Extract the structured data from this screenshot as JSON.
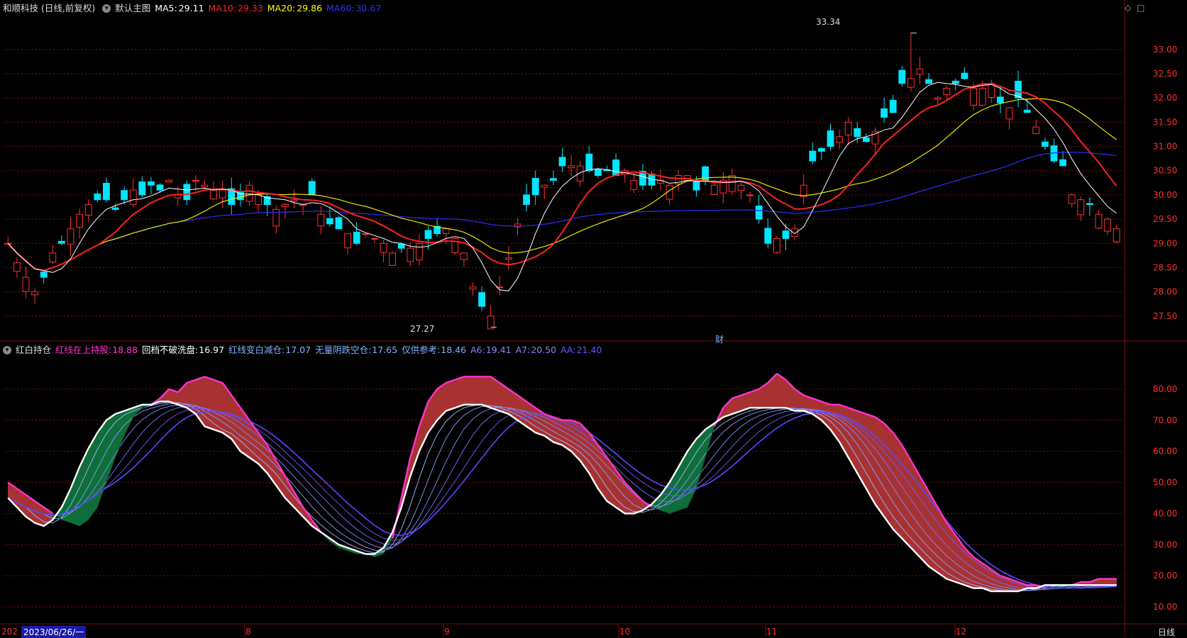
{
  "main_header": {
    "stock": "和顺科技 (日线,前复权)",
    "template": "默认主图",
    "ma": [
      {
        "label": "MA5:",
        "value": "29.11",
        "color": "#ffffff"
      },
      {
        "label": "MA10:",
        "value": "29.33",
        "color": "#ff2020"
      },
      {
        "label": "MA20:",
        "value": "29.86",
        "color": "#ffff00"
      },
      {
        "label": "MA60:",
        "value": "30.67",
        "color": "#2020ff"
      }
    ]
  },
  "sub_header": {
    "name": "红白持仓",
    "items": [
      {
        "label": "红线在上持股:",
        "value": "18.88",
        "color": "#ff33cc"
      },
      {
        "label": "回档不破洗盘:",
        "value": "16.97",
        "color": "#ffffff"
      },
      {
        "label": "红线变白减仓:",
        "value": "17.07",
        "color": "#7fb2ff"
      },
      {
        "label": "无量阴跌空仓:",
        "value": "17.65",
        "color": "#7fb2ff"
      },
      {
        "label": "仅供参考:",
        "value": "18.46",
        "color": "#7fb2ff"
      },
      {
        "label": "A6:",
        "value": "19.41",
        "color": "#8f7fff"
      },
      {
        "label": "A7:",
        "value": "20.50",
        "color": "#8f7fff"
      },
      {
        "label": "AA:",
        "value": "21.40",
        "color": "#5a5aff"
      }
    ]
  },
  "icons": [
    "diamond-icon",
    "square-icon",
    "collapse-icon"
  ],
  "fin_marker": "财",
  "annotations": {
    "high": "33.34",
    "low": "27.27"
  },
  "x_axis": {
    "start": "202",
    "cursor_date": "2023/06/26/一",
    "months": [
      "8",
      "9",
      "10",
      "11",
      "12"
    ],
    "period": "日线"
  },
  "colors": {
    "up": "#ff3030",
    "down": "#00e5ff",
    "grid": "#7a1010",
    "axis_text": "#ff3030",
    "red_fill": "#a83232",
    "green_fill": "#0f6e3a"
  },
  "chart_data": [
    {
      "type": "candlestick",
      "title": "",
      "ylim": [
        27.0,
        33.7
      ],
      "y_ticks": [
        "33.00",
        "32.50",
        "32.00",
        "31.50",
        "31.00",
        "30.50",
        "30.00",
        "29.50",
        "29.00",
        "28.50",
        "28.00",
        "27.50"
      ],
      "n": 125,
      "close_approx": [
        29.0,
        28.6,
        28.3,
        28.0,
        28.3,
        28.8,
        29.0,
        29.3,
        29.6,
        29.8,
        29.9,
        29.9,
        29.7,
        29.9,
        30.1,
        30.0,
        30.2,
        30.1,
        30.3,
        30.0,
        29.9,
        30.3,
        30.2,
        30.1,
        30.1,
        29.8,
        29.9,
        30.2,
        30.0,
        29.8,
        29.7,
        29.8,
        29.9,
        29.8,
        30.0,
        29.6,
        29.4,
        29.3,
        29.2,
        29.0,
        29.2,
        29.1,
        29.0,
        28.8,
        28.9,
        28.9,
        29.0,
        29.1,
        29.2,
        29.3,
        29.1,
        28.8,
        28.1,
        27.7,
        27.5,
        28.1,
        28.7,
        29.4,
        29.8,
        30.0,
        30.2,
        30.3,
        30.6,
        30.6,
        30.6,
        30.5,
        30.4,
        30.5,
        30.4,
        30.5,
        30.3,
        30.2,
        30.2,
        30.3,
        30.2,
        30.4,
        30.4,
        30.1,
        30.3,
        30.2,
        30.3,
        30.4,
        30.2,
        30.0,
        29.5,
        29.0,
        29.1,
        29.1,
        29.3,
        30.2,
        30.7,
        30.9,
        31.0,
        31.2,
        31.5,
        31.2,
        31.1,
        31.3,
        31.6,
        31.7,
        32.3,
        32.4,
        32.6,
        32.3,
        32.0,
        32.2,
        32.3,
        32.4,
        32.2,
        32.2,
        32.3,
        31.9,
        31.8,
        32.0,
        31.7,
        31.4,
        31.0,
        30.7,
        30.6,
        30.0,
        29.9,
        29.8,
        29.6,
        29.5,
        29.3
      ],
      "series": [
        {
          "name": "MA5",
          "last": 29.11
        },
        {
          "name": "MA10",
          "last": 29.33
        },
        {
          "name": "MA20",
          "last": 29.86
        },
        {
          "name": "MA60",
          "last": 30.67
        }
      ],
      "high_mark": 33.34,
      "low_mark": 27.27
    },
    {
      "type": "line",
      "title": "",
      "ylim": [
        5,
        90
      ],
      "y_ticks": [
        "80.00",
        "70.00",
        "60.00",
        "50.00",
        "40.00",
        "30.00",
        "20.00",
        "10.00"
      ],
      "red_line": [
        50,
        48,
        46,
        44,
        42,
        40,
        38,
        37,
        36,
        38,
        42,
        50,
        58,
        65,
        71,
        74,
        75,
        77,
        80,
        79,
        82,
        83,
        84,
        83,
        82,
        78,
        74,
        70,
        66,
        62,
        57,
        52,
        47,
        42,
        38,
        34,
        31,
        29,
        28,
        27,
        27,
        26,
        27,
        32,
        45,
        58,
        68,
        76,
        80,
        82,
        83,
        84,
        84,
        84,
        84,
        82,
        80,
        78,
        76,
        74,
        72,
        71,
        70,
        70,
        69,
        66,
        62,
        58,
        54,
        50,
        47,
        44,
        42,
        41,
        40,
        41,
        42,
        48,
        58,
        68,
        74,
        77,
        78,
        79,
        80,
        82,
        85,
        83,
        80,
        78,
        77,
        76,
        75,
        75,
        74,
        73,
        72,
        71,
        69,
        66,
        62,
        57,
        52,
        47,
        42,
        37,
        33,
        29,
        26,
        24,
        22,
        20,
        19,
        18,
        17,
        17,
        16,
        16,
        16,
        17,
        18,
        18,
        19,
        19,
        19
      ],
      "white_line": [
        45,
        42,
        39,
        37,
        36,
        38,
        42,
        48,
        55,
        61,
        66,
        70,
        72,
        73,
        74,
        75,
        75,
        76,
        76,
        75,
        74,
        72,
        68,
        67,
        66,
        64,
        60,
        58,
        56,
        53,
        49,
        45,
        42,
        39,
        36,
        34,
        32,
        30,
        29,
        28,
        27,
        27,
        29,
        34,
        42,
        52,
        60,
        66,
        70,
        73,
        74,
        75,
        75,
        75,
        74,
        73,
        72,
        70,
        68,
        66,
        65,
        63,
        62,
        60,
        57,
        53,
        48,
        44,
        42,
        40,
        40,
        41,
        43,
        46,
        50,
        55,
        60,
        64,
        67,
        69,
        71,
        72,
        73,
        74,
        74,
        74,
        74,
        74,
        73,
        73,
        72,
        70,
        67,
        63,
        58,
        53,
        48,
        43,
        39,
        35,
        32,
        29,
        26,
        23,
        21,
        19,
        18,
        17,
        16,
        16,
        15,
        15,
        15,
        15,
        16,
        16,
        17,
        17,
        17,
        17,
        17,
        17,
        17,
        17,
        17
      ],
      "series": [
        {
          "name": "红线在上持股",
          "last": 18.88
        },
        {
          "name": "回档不破洗盘",
          "last": 16.97
        },
        {
          "name": "红线变白减仓",
          "last": 17.07
        },
        {
          "name": "无量阴跌空仓",
          "last": 17.65
        },
        {
          "name": "仅供参考",
          "last": 18.46
        },
        {
          "name": "A6",
          "last": 19.41
        },
        {
          "name": "A7",
          "last": 20.5
        },
        {
          "name": "AA",
          "last": 21.4
        }
      ]
    }
  ]
}
